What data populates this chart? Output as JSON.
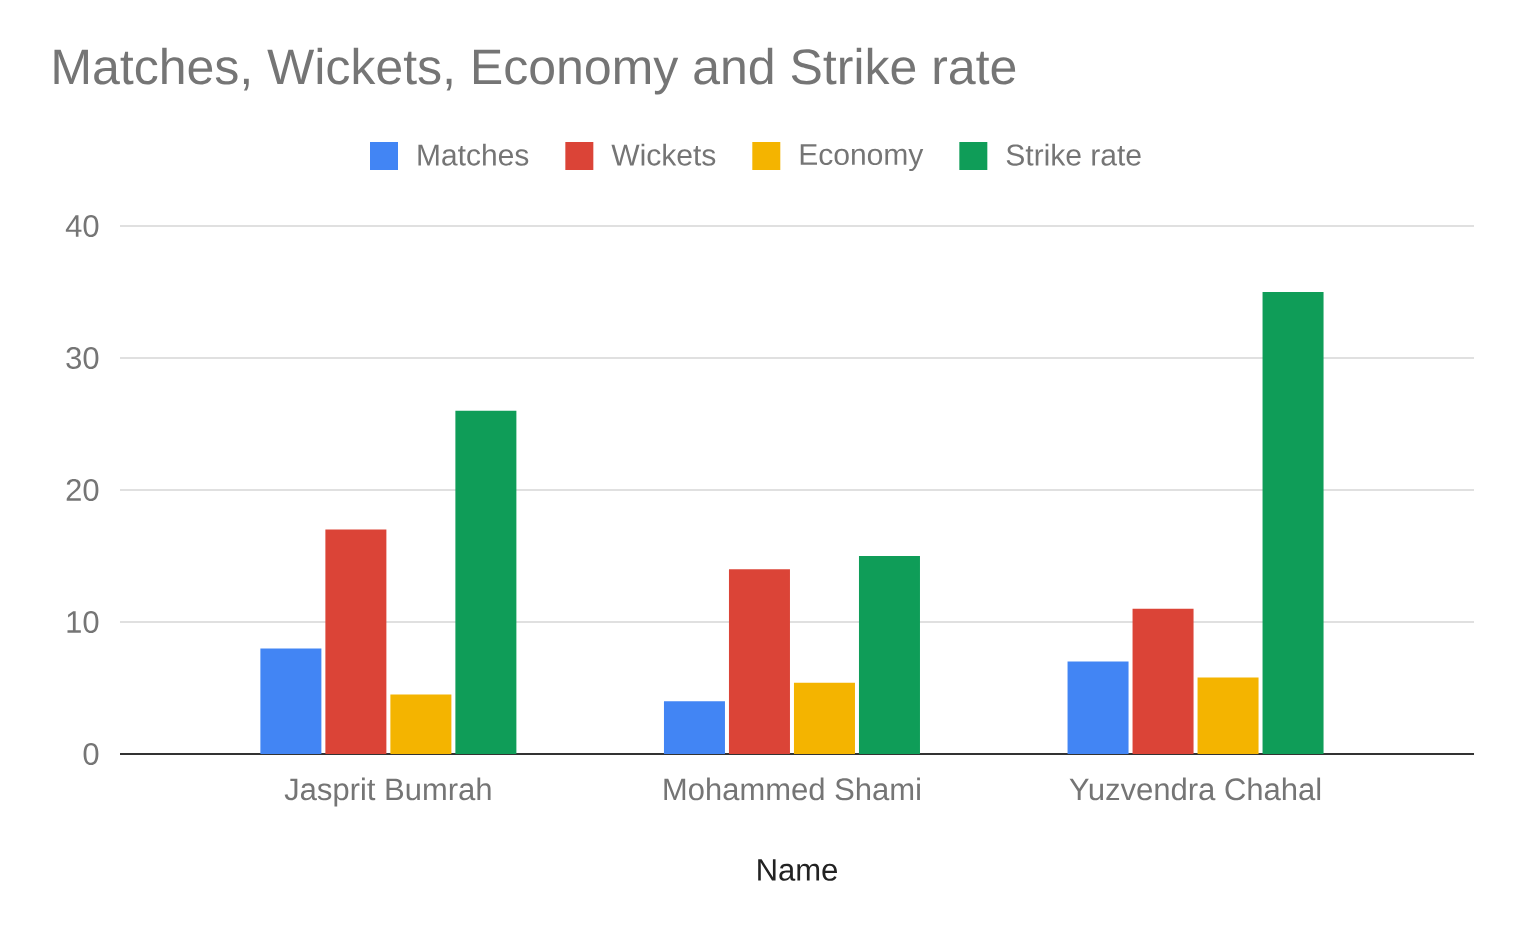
{
  "chart_data": {
    "type": "bar",
    "title": "Matches, Wickets, Economy and Strike rate",
    "xlabel": "Name",
    "categories": [
      "Jasprit Bumrah",
      "Mohammed Shami",
      "Yuzvendra Chahal"
    ],
    "series": [
      {
        "name": "Matches",
        "color": "#4285f4",
        "values": [
          8,
          4,
          7
        ]
      },
      {
        "name": "Wickets",
        "color": "#db4437",
        "values": [
          17,
          14,
          11
        ]
      },
      {
        "name": "Economy",
        "color": "#f4b400",
        "values": [
          4.5,
          5.4,
          5.8
        ]
      },
      {
        "name": "Strike rate",
        "color": "#0f9d58",
        "values": [
          26,
          15,
          35
        ]
      }
    ],
    "ylim": [
      0,
      40
    ],
    "yticks": [
      0,
      10,
      20,
      30,
      40
    ],
    "grid": "y",
    "legend": "top"
  }
}
